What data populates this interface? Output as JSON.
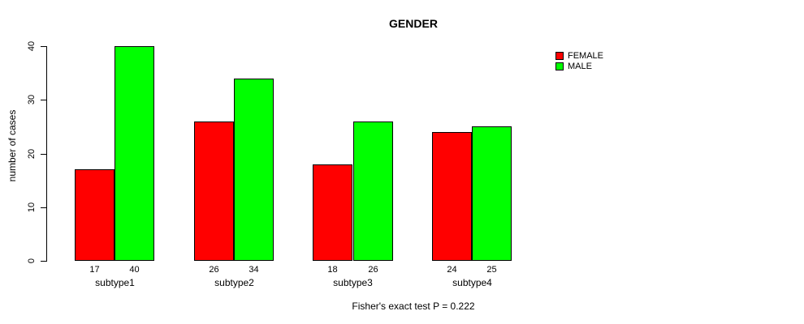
{
  "title": "GENDER",
  "subtitle": "Fisher's exact test P = 0.222",
  "chart_data": {
    "type": "bar",
    "categories": [
      "subtype1",
      "subtype2",
      "subtype3",
      "subtype4"
    ],
    "series": [
      {
        "name": "FEMALE",
        "color": "#ff0000",
        "values": [
          17,
          26,
          18,
          24
        ]
      },
      {
        "name": "MALE",
        "color": "#00ff00",
        "values": [
          40,
          34,
          26,
          25
        ]
      }
    ],
    "title": "GENDER",
    "xlabel": "",
    "ylabel": "number of cases",
    "ylim": [
      0,
      40
    ],
    "yticks": [
      0,
      10,
      20,
      30,
      40
    ],
    "grid": false,
    "legend_position": "top-right",
    "bar_value_labels": true,
    "bar_border_color": "#000000",
    "annotation": "Fisher's exact test P = 0.222"
  }
}
